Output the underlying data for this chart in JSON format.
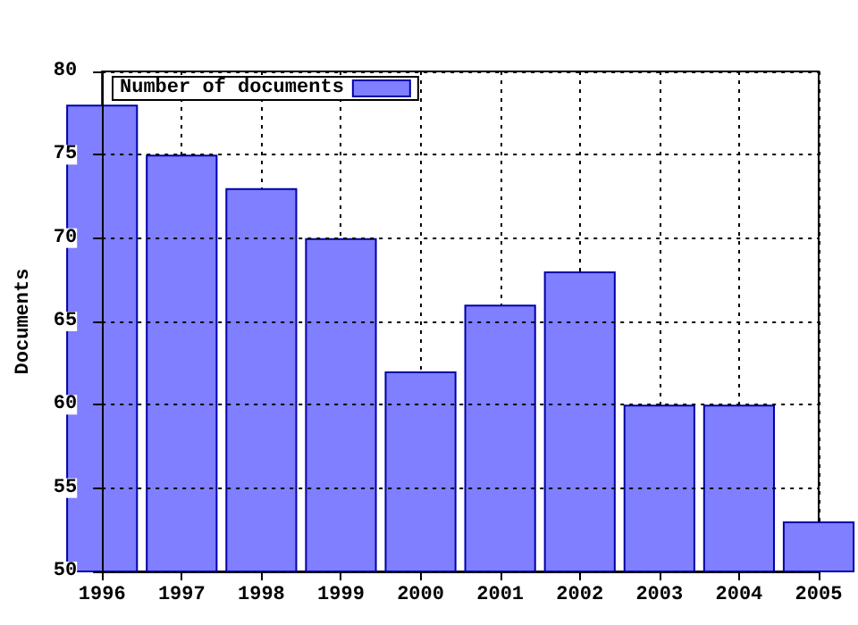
{
  "chart_data": {
    "type": "bar",
    "ylabel": "Documents",
    "x": [
      1996,
      1997,
      1998,
      1999,
      2000,
      2001,
      2002,
      2003,
      2004,
      2005
    ],
    "series": [
      {
        "name": "Number of documents",
        "color": "#7f7fff",
        "values": [
          78,
          75,
          73,
          70,
          62,
          66,
          68,
          60,
          60,
          53
        ]
      }
    ],
    "xlim": [
      1996,
      2005
    ],
    "xticks": [
      1996,
      1997,
      1998,
      1999,
      2000,
      2001,
      2002,
      2003,
      2004,
      2005
    ],
    "ylim": [
      50,
      80
    ],
    "yticks": [
      50,
      55,
      60,
      65,
      70,
      75,
      80
    ],
    "grid": true,
    "legend": "top left"
  }
}
